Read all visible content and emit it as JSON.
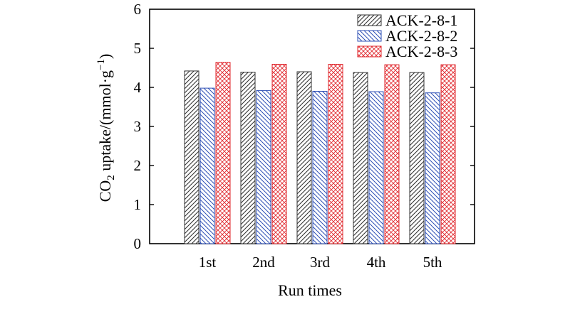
{
  "chart_data": {
    "type": "bar",
    "categories": [
      "1st",
      "2nd",
      "3rd",
      "4th",
      "5th"
    ],
    "series": [
      {
        "name": "ACK-2-8-1",
        "values": [
          4.42,
          4.39,
          4.4,
          4.38,
          4.38
        ],
        "color": "#333333",
        "pattern": "diagonal-up"
      },
      {
        "name": "ACK-2-8-2",
        "values": [
          3.98,
          3.92,
          3.9,
          3.89,
          3.86
        ],
        "color": "#2e4fb5",
        "pattern": "diagonal-down"
      },
      {
        "name": "ACK-2-8-3",
        "values": [
          4.64,
          4.59,
          4.59,
          4.58,
          4.58
        ],
        "color": "#e0282e",
        "pattern": "cross-hatch"
      }
    ],
    "xlabel": "Run times",
    "ylabel_prefix": "CO",
    "ylabel_subscript": "2",
    "ylabel_middle": " uptake/(mmol·g",
    "ylabel_superscript": "−1",
    "ylabel_suffix": ")",
    "ylim": [
      0,
      6
    ],
    "yticks": [
      "0",
      "1",
      "2",
      "3",
      "4",
      "5",
      "6"
    ],
    "grid": false,
    "legend_position": "top-right"
  }
}
